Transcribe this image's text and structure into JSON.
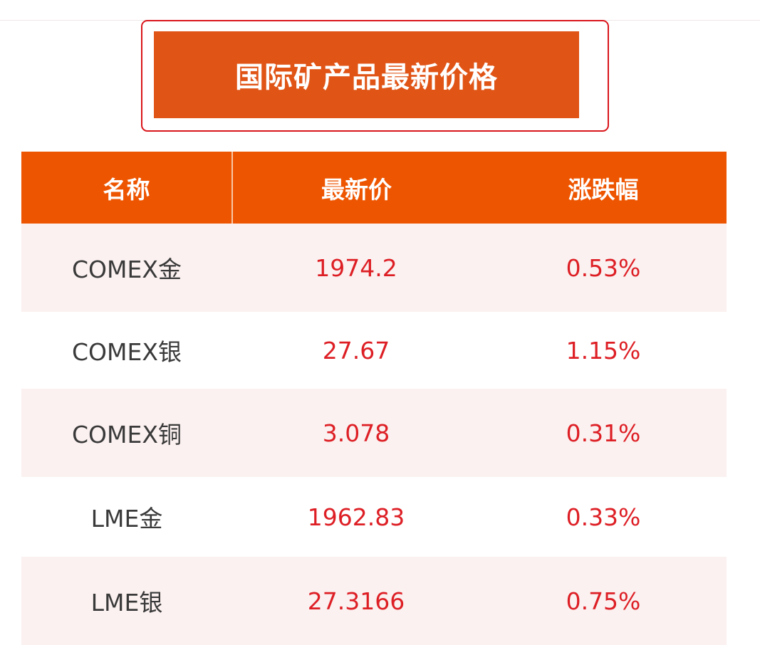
{
  "title": "国际矿产品最新价格",
  "colors": {
    "title_bg": "#e05416",
    "header_bg": "#ee5500",
    "row_alt": "#fbf1f0",
    "value_red": "#dd1f25",
    "border_red": "#d9161c"
  },
  "table": {
    "headers": [
      "名称",
      "最新价",
      "涨跌幅"
    ],
    "rows": [
      {
        "name": "COMEX金",
        "price": "1974.2",
        "change": "0.53%"
      },
      {
        "name": "COMEX银",
        "price": "27.67",
        "change": "1.15%"
      },
      {
        "name": "COMEX铜",
        "price": "3.078",
        "change": "0.31%"
      },
      {
        "name": "LME金",
        "price": "1962.83",
        "change": "0.33%"
      },
      {
        "name": "LME银",
        "price": "27.3166",
        "change": "0.75%"
      }
    ]
  }
}
